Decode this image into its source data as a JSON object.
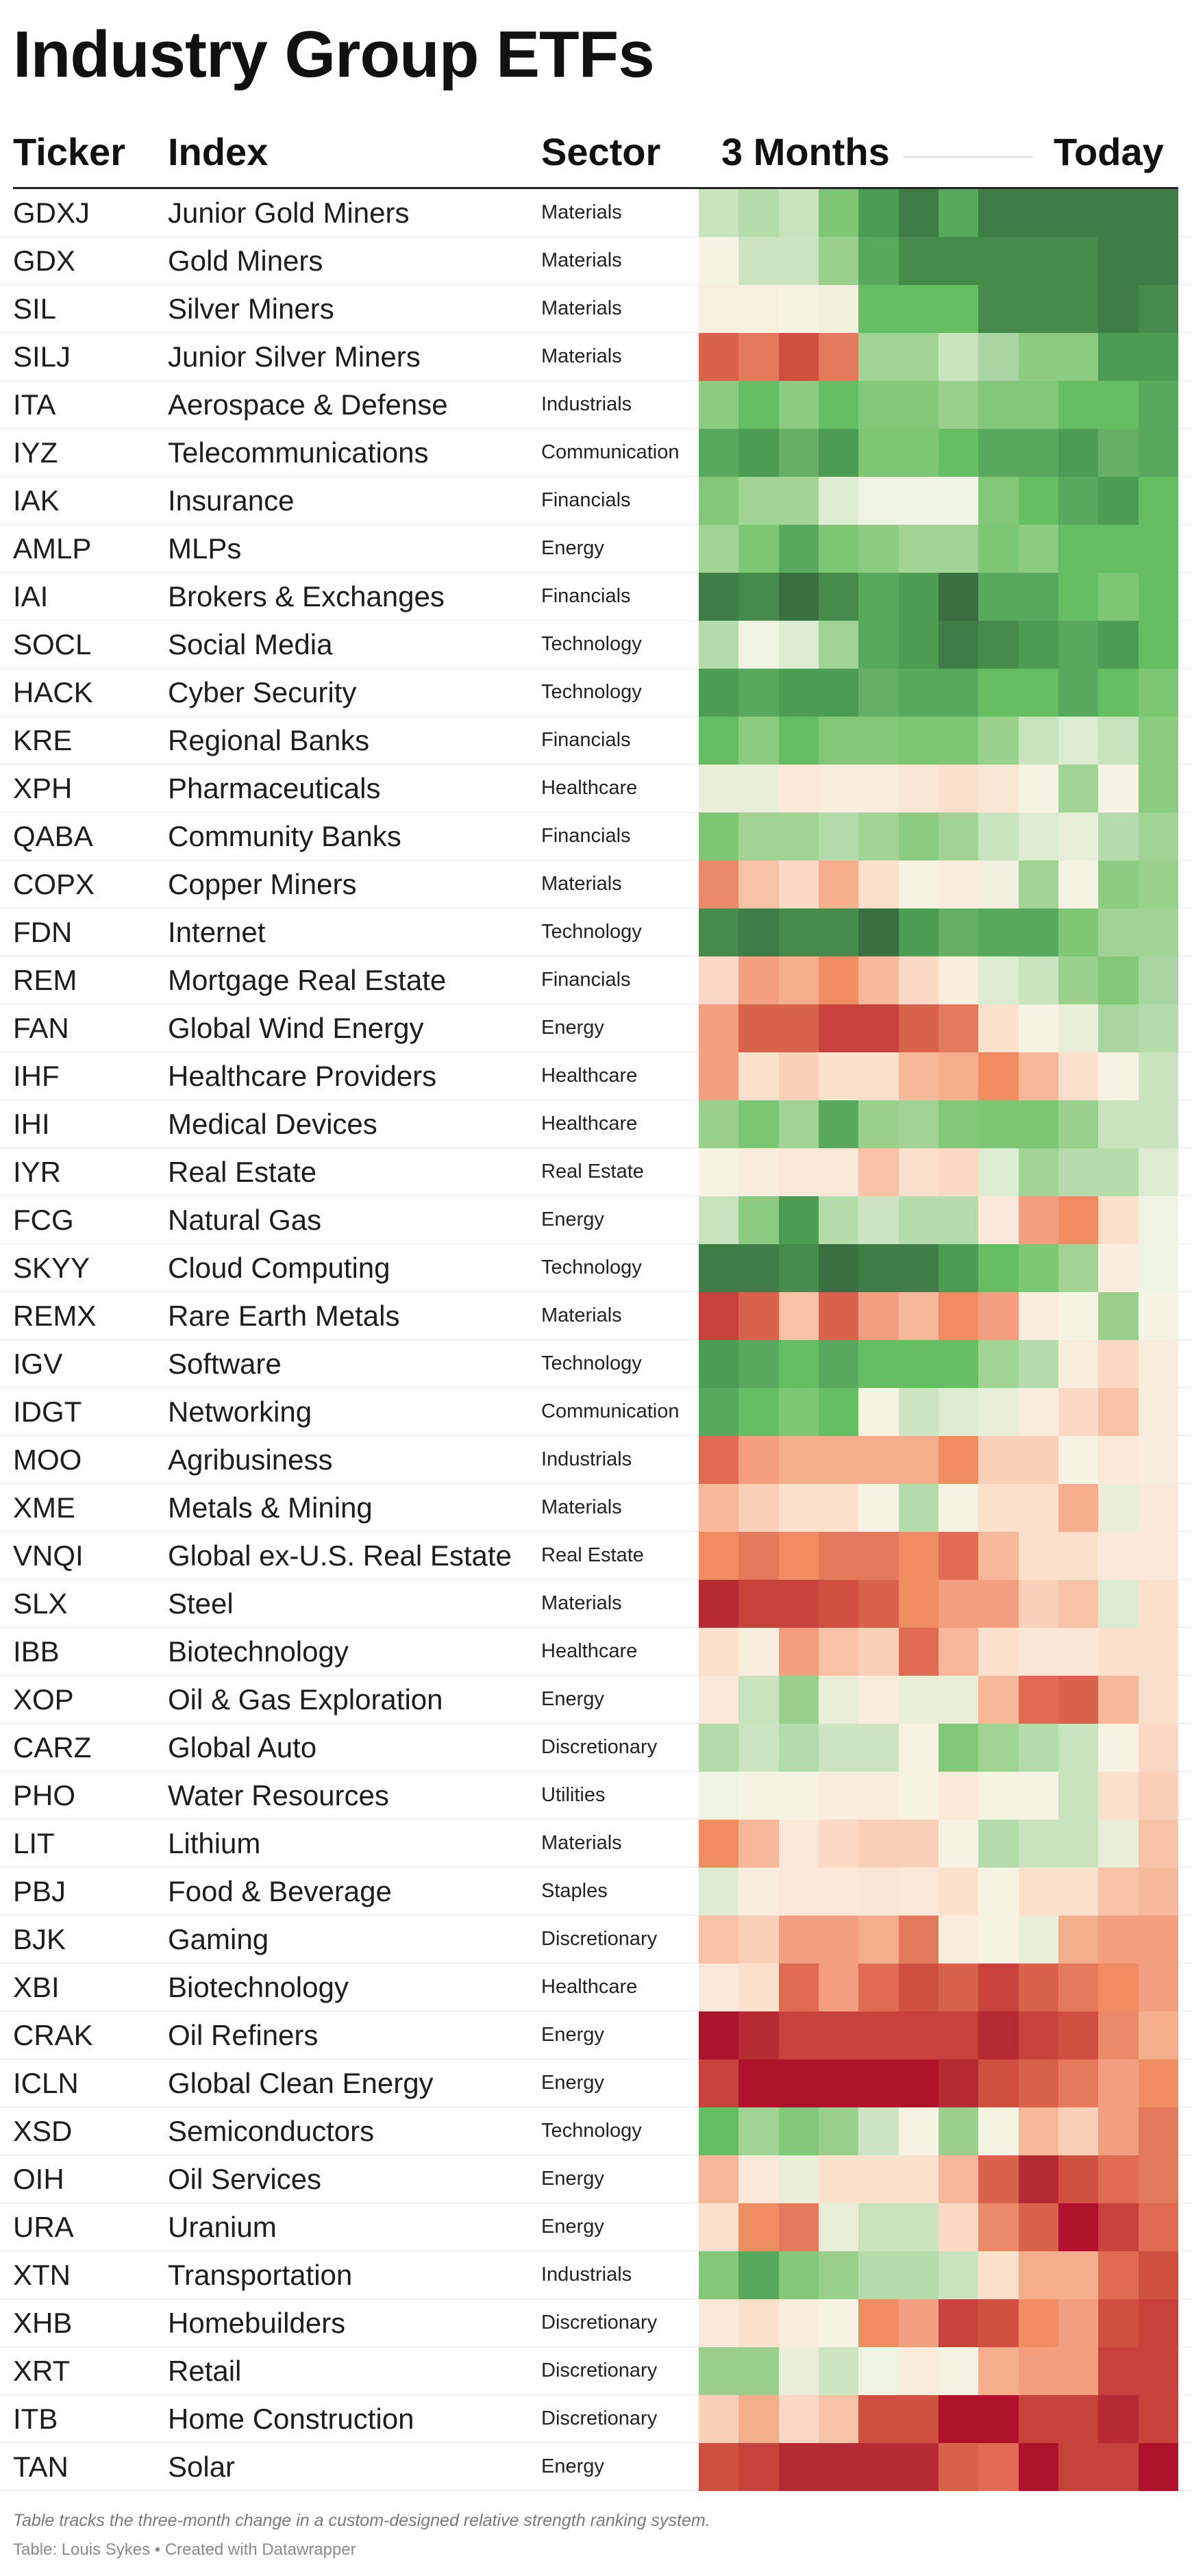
{
  "title": "Industry Group ETFs",
  "header": {
    "ticker": "Ticker",
    "index": "Index",
    "sector": "Sector",
    "from": "3 Months",
    "to": "Today"
  },
  "footer": {
    "note": "Table tracks the three-month change in a custom-designed relative strength ranking system.",
    "source": "Table: Louis Sykes • Created with Datawrapper"
  },
  "chart_data": {
    "type": "heatmap",
    "title": "Industry Group ETFs",
    "columns": [
      "Ticker",
      "Index",
      "Sector",
      "3 Months",
      "Today"
    ],
    "color_scale": {
      "low": "#b0122c",
      "mid": "#f7f4e6",
      "high": "#2f6e37"
    },
    "rows": [
      {
        "ticker": "GDXJ",
        "index": "Junior Gold Miners",
        "sector": "Materials",
        "colors": [
          "#c8e3bd",
          "#b4dbaa",
          "#c8e3bd",
          "#7cc674",
          "#4d9c53",
          "#3d7c45",
          "#58a85d",
          "#3e7d46",
          "#3e7d46",
          "#3e7d46",
          "#3e7d46",
          "#3e7d46"
        ]
      },
      {
        "ticker": "GDX",
        "index": "Gold Miners",
        "sector": "Materials",
        "colors": [
          "#f6f3e3",
          "#cce4c2",
          "#cce4c2",
          "#9ad18d",
          "#58a85d",
          "#468a4c",
          "#468a4c",
          "#468a4c",
          "#468a4c",
          "#468a4c",
          "#3e7d46",
          "#3e7d46"
        ]
      },
      {
        "ticker": "SIL",
        "index": "Silver Miners",
        "sector": "Materials",
        "colors": [
          "#f7f0de",
          "#f7f0de",
          "#f6f3e3",
          "#f2f1df",
          "#66be62",
          "#66be62",
          "#66be62",
          "#468a4c",
          "#468a4c",
          "#468a4c",
          "#3e7d46",
          "#468a4c"
        ]
      },
      {
        "ticker": "SILJ",
        "index": "Junior Silver Miners",
        "sector": "Materials",
        "colors": [
          "#d9624b",
          "#e47a5c",
          "#d0503f",
          "#e47a5c",
          "#a0d394",
          "#a0d394",
          "#c8e3bd",
          "#a9d6a0",
          "#8ccc81",
          "#8ccc81",
          "#4d9c53",
          "#4d9c53"
        ]
      },
      {
        "ticker": "ITA",
        "index": "Aerospace & Defense",
        "sector": "Industrials",
        "colors": [
          "#8ccc81",
          "#66be62",
          "#8ccc81",
          "#66be62",
          "#82c878",
          "#82c878",
          "#98d08c",
          "#82c878",
          "#82c878",
          "#66be62",
          "#66be62",
          "#58a85d"
        ]
      },
      {
        "ticker": "IYZ",
        "index": "Telecommunications",
        "sector": "Communication",
        "colors": [
          "#58a85d",
          "#4d9c53",
          "#66b066",
          "#4d9c53",
          "#7cc674",
          "#7cc674",
          "#66be62",
          "#58a85d",
          "#58a85d",
          "#4d9c53",
          "#66b066",
          "#58a85d"
        ]
      },
      {
        "ticker": "IAK",
        "index": "Insurance",
        "sector": "Financials",
        "colors": [
          "#82c878",
          "#a0d394",
          "#a0d394",
          "#dbecd0",
          "#eef3e2",
          "#eef3e2",
          "#eef3e2",
          "#82c878",
          "#66be62",
          "#58a85d",
          "#4d9c53",
          "#66be62"
        ]
      },
      {
        "ticker": "AMLP",
        "index": "MLPs",
        "sector": "Energy",
        "colors": [
          "#a0d394",
          "#7cc674",
          "#58a85d",
          "#7cc674",
          "#8ccc81",
          "#a0d394",
          "#a0d394",
          "#7cc674",
          "#8ccc81",
          "#66be62",
          "#66be62",
          "#66be62"
        ]
      },
      {
        "ticker": "IAI",
        "index": "Brokers & Exchanges",
        "sector": "Financials",
        "colors": [
          "#3e7d46",
          "#468a4c",
          "#3a6f3f",
          "#468a4c",
          "#58a85d",
          "#4d9c53",
          "#3a6f3f",
          "#58a85d",
          "#58a85d",
          "#66be62",
          "#7cc674",
          "#66be62"
        ]
      },
      {
        "ticker": "SOCL",
        "index": "Social Media",
        "sector": "Technology",
        "colors": [
          "#b4dbaa",
          "#eef3e2",
          "#dbecd0",
          "#a0d394",
          "#58a85d",
          "#4d9c53",
          "#3e7d46",
          "#468a4c",
          "#4d9c53",
          "#58a85d",
          "#4d9c53",
          "#66be62"
        ]
      },
      {
        "ticker": "HACK",
        "index": "Cyber Security",
        "sector": "Technology",
        "colors": [
          "#4d9c53",
          "#58a85d",
          "#4d9c53",
          "#4d9c53",
          "#66b066",
          "#58a85d",
          "#58a85d",
          "#66be62",
          "#66be62",
          "#58a85d",
          "#66be62",
          "#7cc674"
        ]
      },
      {
        "ticker": "KRE",
        "index": "Regional Banks",
        "sector": "Financials",
        "colors": [
          "#66be62",
          "#8ccc81",
          "#66be62",
          "#82c878",
          "#82c878",
          "#7cc674",
          "#7cc674",
          "#98d08c",
          "#c8e3bd",
          "#dbecd0",
          "#c8e3bd",
          "#8ccc81"
        ]
      },
      {
        "ticker": "XPH",
        "index": "Pharmaceuticals",
        "sector": "Healthcare",
        "colors": [
          "#e8eed8",
          "#e8eed8",
          "#fbe8d8",
          "#f9eddd",
          "#f9eddd",
          "#f9e6d4",
          "#fbe0cc",
          "#f9e6d4",
          "#f6f3e3",
          "#a0d394",
          "#f6f3e3",
          "#8ccc81"
        ]
      },
      {
        "ticker": "QABA",
        "index": "Community Banks",
        "sector": "Financials",
        "colors": [
          "#7cc674",
          "#a0d394",
          "#a0d394",
          "#b4dbaa",
          "#a0d394",
          "#8ccc81",
          "#a0d394",
          "#c8e3bd",
          "#dbecd0",
          "#e8eed8",
          "#b4dbaa",
          "#a0d394"
        ]
      },
      {
        "ticker": "COPX",
        "index": "Copper Miners",
        "sector": "Materials",
        "colors": [
          "#ea8a68",
          "#f7c2a6",
          "#fbd9c4",
          "#f5ae8c",
          "#fbe0cc",
          "#f6f3e3",
          "#f9eddd",
          "#f2f1df",
          "#a0d394",
          "#f6f3e3",
          "#8ccc81",
          "#98d08c"
        ]
      },
      {
        "ticker": "FDN",
        "index": "Internet",
        "sector": "Technology",
        "colors": [
          "#468a4c",
          "#3e7d46",
          "#468a4c",
          "#468a4c",
          "#3a6f3f",
          "#4d9c53",
          "#66b066",
          "#58a85d",
          "#58a85d",
          "#7cc674",
          "#a0d394",
          "#a0d394"
        ]
      },
      {
        "ticker": "REM",
        "index": "Mortgage Real Estate",
        "sector": "Financials",
        "colors": [
          "#fbd9c4",
          "#f39f7f",
          "#f5ae8c",
          "#ef8c62",
          "#f7b89a",
          "#fbd9c4",
          "#f9eddd",
          "#dbecd0",
          "#c8e3bd",
          "#98d08c",
          "#82c878",
          "#a9d6a0"
        ]
      },
      {
        "ticker": "FAN",
        "index": "Global Wind Energy",
        "sector": "Energy",
        "colors": [
          "#f39f7f",
          "#d9624b",
          "#d9624b",
          "#c8423c",
          "#c8423c",
          "#d9624b",
          "#e47a5c",
          "#fbe0cc",
          "#f6f3e3",
          "#e8eed8",
          "#a9d6a0",
          "#b4dbaa"
        ]
      },
      {
        "ticker": "IHF",
        "index": "Healthcare Providers",
        "sector": "Healthcare",
        "colors": [
          "#f39f7f",
          "#fbe0cc",
          "#fbd0b8",
          "#fbe0cc",
          "#fbe0cc",
          "#f7b89a",
          "#f5ae8c",
          "#ef8c62",
          "#f7b89a",
          "#fbe0cc",
          "#f6f3e3",
          "#c8e3bd"
        ]
      },
      {
        "ticker": "IHI",
        "index": "Medical Devices",
        "sector": "Healthcare",
        "colors": [
          "#98d08c",
          "#7cc674",
          "#a0d394",
          "#58a85d",
          "#98d08c",
          "#a0d394",
          "#82c878",
          "#7cc674",
          "#7cc674",
          "#98d08c",
          "#c8e3bd",
          "#c8e3bd"
        ]
      },
      {
        "ticker": "IYR",
        "index": "Real Estate",
        "sector": "Real Estate",
        "colors": [
          "#f6f3e3",
          "#f9eddd",
          "#fbe8d8",
          "#fbe8d8",
          "#f7c2a6",
          "#fbe0cc",
          "#fbd9c4",
          "#dbecd0",
          "#a0d394",
          "#b4dbaa",
          "#b4dbaa",
          "#dbecd0"
        ]
      },
      {
        "ticker": "FCG",
        "index": "Natural Gas",
        "sector": "Energy",
        "colors": [
          "#c8e3bd",
          "#8ccc81",
          "#4d9c53",
          "#b4dbaa",
          "#cce4c2",
          "#b4dbaa",
          "#b4dbaa",
          "#fbe8d8",
          "#f39f7f",
          "#ef8c62",
          "#fbe0cc",
          "#eef3e2"
        ]
      },
      {
        "ticker": "SKYY",
        "index": "Cloud Computing",
        "sector": "Technology",
        "colors": [
          "#3e7d46",
          "#3e7d46",
          "#468a4c",
          "#3a6f3f",
          "#3e7d46",
          "#3e7d46",
          "#4d9c53",
          "#66be62",
          "#7cc674",
          "#a0d394",
          "#f9eddd",
          "#eef3e2"
        ]
      },
      {
        "ticker": "REMX",
        "index": "Rare Earth Metals",
        "sector": "Materials",
        "colors": [
          "#c8423c",
          "#d9624b",
          "#f7c2a6",
          "#d9624b",
          "#f39f7f",
          "#f7b89a",
          "#ef8c62",
          "#f39f7f",
          "#f9eddd",
          "#f6f3e3",
          "#98d08c",
          "#f6f3e3"
        ]
      },
      {
        "ticker": "IGV",
        "index": "Software",
        "sector": "Technology",
        "colors": [
          "#4d9c53",
          "#58a85d",
          "#66be62",
          "#58a85d",
          "#66be62",
          "#66be62",
          "#66be62",
          "#a0d394",
          "#b4dbaa",
          "#f9eddd",
          "#fbd9c4",
          "#f9eddd"
        ]
      },
      {
        "ticker": "IDGT",
        "index": "Networking",
        "sector": "Communication",
        "colors": [
          "#58a85d",
          "#66be62",
          "#7cc674",
          "#66be62",
          "#f6f3e3",
          "#cce4c2",
          "#dbecd0",
          "#e8eed8",
          "#f9eddd",
          "#fbd9c4",
          "#f7c2a6",
          "#f9eddd"
        ]
      },
      {
        "ticker": "MOO",
        "index": "Agribusiness",
        "sector": "Industrials",
        "colors": [
          "#e06a52",
          "#f39f7f",
          "#f5ae8c",
          "#f5ae8c",
          "#f5ae8c",
          "#f5ae8c",
          "#ef8c62",
          "#fbd0b8",
          "#fbd0b8",
          "#f6f3e3",
          "#fbe8d8",
          "#f9eddd"
        ]
      },
      {
        "ticker": "XME",
        "index": "Metals & Mining",
        "sector": "Materials",
        "colors": [
          "#f7b89a",
          "#fbd0b8",
          "#fbe0cc",
          "#fbe0cc",
          "#f6f3e3",
          "#b4dbaa",
          "#f6f3e3",
          "#fbe0cc",
          "#fbe0cc",
          "#f5ae8c",
          "#e8eed8",
          "#fbe8d8"
        ]
      },
      {
        "ticker": "VNQI",
        "index": "Global ex-U.S. Real Estate",
        "sector": "Real Estate",
        "colors": [
          "#ef8c62",
          "#e47a5c",
          "#ef8c62",
          "#e47a5c",
          "#e47a5c",
          "#ef8c62",
          "#e06a52",
          "#f7b89a",
          "#fbe0cc",
          "#fbe0cc",
          "#fbe8d8",
          "#fbe8d8"
        ]
      },
      {
        "ticker": "SLX",
        "index": "Steel",
        "sector": "Materials",
        "colors": [
          "#b52a33",
          "#c8423c",
          "#c8423c",
          "#d0503f",
          "#d9624b",
          "#ef8c62",
          "#f39f7f",
          "#f39f7f",
          "#fbd0b8",
          "#f7c2a6",
          "#dbecd0",
          "#fbe0cc"
        ]
      },
      {
        "ticker": "IBB",
        "index": "Biotechnology",
        "sector": "Healthcare",
        "colors": [
          "#fbe0cc",
          "#f9eddd",
          "#f39f7f",
          "#f7c2a6",
          "#fbd0b8",
          "#e06a52",
          "#f7b89a",
          "#fbe0cc",
          "#f9e6d4",
          "#f9e6d4",
          "#fbe0cc",
          "#fbe0cc"
        ]
      },
      {
        "ticker": "XOP",
        "index": "Oil & Gas Exploration",
        "sector": "Energy",
        "colors": [
          "#fbe8d8",
          "#c8e3bd",
          "#98d08c",
          "#e8eed8",
          "#f9eddd",
          "#e8eed8",
          "#e8eed8",
          "#f7b89a",
          "#e06a52",
          "#d9624b",
          "#f7b89a",
          "#fbe0cc"
        ]
      },
      {
        "ticker": "CARZ",
        "index": "Global Auto",
        "sector": "Discretionary",
        "colors": [
          "#b4dbaa",
          "#cce4c2",
          "#b4dbaa",
          "#cce4c2",
          "#cce4c2",
          "#f6f3e3",
          "#82c878",
          "#a0d394",
          "#b4dbaa",
          "#c8e3bd",
          "#f6f3e3",
          "#fbd9c4"
        ]
      },
      {
        "ticker": "PHO",
        "index": "Water Resources",
        "sector": "Utilities",
        "colors": [
          "#eef3e2",
          "#f6f3e3",
          "#f6f3e3",
          "#f9eddd",
          "#f9eddd",
          "#f6f3e3",
          "#fbe8d8",
          "#f6f3e3",
          "#f6f3e3",
          "#c8e3bd",
          "#fbe0cc",
          "#fbd0b8"
        ]
      },
      {
        "ticker": "LIT",
        "index": "Lithium",
        "sector": "Materials",
        "colors": [
          "#ef8c62",
          "#f7b89a",
          "#fbe8d8",
          "#fbd9c4",
          "#fbd0b8",
          "#fbd0b8",
          "#f6f3e3",
          "#b4dbaa",
          "#c8e3bd",
          "#c8e3bd",
          "#e8eed8",
          "#f7c2a6"
        ]
      },
      {
        "ticker": "PBJ",
        "index": "Food & Beverage",
        "sector": "Staples",
        "colors": [
          "#dbecd0",
          "#f9eddd",
          "#fbe8d8",
          "#fbe8d8",
          "#f9e6d4",
          "#fbe8d8",
          "#fbe0cc",
          "#f6f3e3",
          "#fbe0cc",
          "#fbe0cc",
          "#f7c2a6",
          "#f7b89a"
        ]
      },
      {
        "ticker": "BJK",
        "index": "Gaming",
        "sector": "Discretionary",
        "colors": [
          "#f7c2a6",
          "#fbd0b8",
          "#f39f7f",
          "#f39f7f",
          "#f5ae8c",
          "#e47a5c",
          "#f9eddd",
          "#f6f3e3",
          "#e8eed8",
          "#f5ae8c",
          "#f39f7f",
          "#f39f7f"
        ]
      },
      {
        "ticker": "XBI",
        "index": "Biotechnology",
        "sector": "Healthcare",
        "colors": [
          "#fbe8d8",
          "#fbe0cc",
          "#e06a52",
          "#f39f7f",
          "#e06a52",
          "#d0503f",
          "#d9624b",
          "#c8423c",
          "#d9624b",
          "#e47a5c",
          "#ef8c62",
          "#f39f7f"
        ]
      },
      {
        "ticker": "CRAK",
        "index": "Oil Refiners",
        "sector": "Energy",
        "colors": [
          "#a8152d",
          "#b52a33",
          "#c8423c",
          "#c8423c",
          "#c8423c",
          "#c8423c",
          "#c8423c",
          "#b52a33",
          "#c8423c",
          "#d0503f",
          "#ea8a68",
          "#f5ae8c"
        ]
      },
      {
        "ticker": "ICLN",
        "index": "Global Clean Energy",
        "sector": "Energy",
        "colors": [
          "#c8423c",
          "#b0122c",
          "#b0122c",
          "#b0122c",
          "#b0122c",
          "#b0122c",
          "#b52a33",
          "#d0503f",
          "#d9624b",
          "#e47a5c",
          "#f39f7f",
          "#ef8c62"
        ]
      },
      {
        "ticker": "XSD",
        "index": "Semiconductors",
        "sector": "Technology",
        "colors": [
          "#66be62",
          "#a0d394",
          "#82c878",
          "#98d08c",
          "#cce4c2",
          "#f6f3e3",
          "#98d08c",
          "#f6f3e3",
          "#f7b89a",
          "#fbd0b8",
          "#f39f7f",
          "#e47a5c"
        ]
      },
      {
        "ticker": "OIH",
        "index": "Oil Services",
        "sector": "Energy",
        "colors": [
          "#f7b89a",
          "#fbe8d8",
          "#e8eed8",
          "#fbe0cc",
          "#fbe0cc",
          "#fbe0cc",
          "#f7b89a",
          "#d9624b",
          "#b52a33",
          "#d0503f",
          "#e06a52",
          "#e47a5c"
        ]
      },
      {
        "ticker": "URA",
        "index": "Uranium",
        "sector": "Energy",
        "colors": [
          "#fbe0cc",
          "#ef8c62",
          "#e47a5c",
          "#e8eed8",
          "#c8e3bd",
          "#c8e3bd",
          "#fbd9c4",
          "#ea8a68",
          "#d9624b",
          "#b0122c",
          "#c8423c",
          "#e06a52"
        ]
      },
      {
        "ticker": "XTN",
        "index": "Transportation",
        "sector": "Industrials",
        "colors": [
          "#82c878",
          "#58a85d",
          "#82c878",
          "#98d08c",
          "#b4dbaa",
          "#b4dbaa",
          "#c8e3bd",
          "#fbe0cc",
          "#f5ae8c",
          "#f5ae8c",
          "#e06a52",
          "#d0503f"
        ]
      },
      {
        "ticker": "XHB",
        "index": "Homebuilders",
        "sector": "Discretionary",
        "colors": [
          "#fbe8d8",
          "#fbe0cc",
          "#f9eddd",
          "#f6f3e3",
          "#ef8c62",
          "#f39f7f",
          "#c8423c",
          "#d0503f",
          "#ef8c62",
          "#f39f7f",
          "#d0503f",
          "#c8423c"
        ]
      },
      {
        "ticker": "XRT",
        "index": "Retail",
        "sector": "Discretionary",
        "colors": [
          "#98d08c",
          "#98d08c",
          "#e8eed8",
          "#cce4c2",
          "#eef3e2",
          "#f9eddd",
          "#f6f3e3",
          "#f5ae8c",
          "#f39f7f",
          "#f39f7f",
          "#c8423c",
          "#c8423c"
        ]
      },
      {
        "ticker": "ITB",
        "index": "Home Construction",
        "sector": "Discretionary",
        "colors": [
          "#fbd0b8",
          "#f5ae8c",
          "#fbd9c4",
          "#f7c2a6",
          "#d0503f",
          "#d0503f",
          "#b0122c",
          "#b0122c",
          "#c8423c",
          "#c8423c",
          "#b52a33",
          "#c8423c"
        ]
      },
      {
        "ticker": "TAN",
        "index": "Solar",
        "sector": "Energy",
        "colors": [
          "#d0503f",
          "#c8423c",
          "#b52a33",
          "#b52a33",
          "#b52a33",
          "#b52a33",
          "#d9624b",
          "#e06a52",
          "#b0122c",
          "#c8423c",
          "#c8423c",
          "#b0122c"
        ]
      }
    ]
  }
}
